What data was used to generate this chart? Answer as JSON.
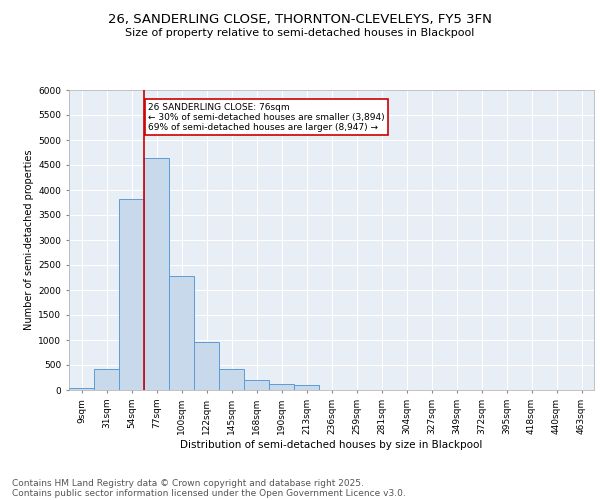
{
  "title1": "26, SANDERLING CLOSE, THORNTON-CLEVELEYS, FY5 3FN",
  "title2": "Size of property relative to semi-detached houses in Blackpool",
  "xlabel": "Distribution of semi-detached houses by size in Blackpool",
  "ylabel": "Number of semi-detached properties",
  "categories": [
    "9sqm",
    "31sqm",
    "54sqm",
    "77sqm",
    "100sqm",
    "122sqm",
    "145sqm",
    "168sqm",
    "190sqm",
    "213sqm",
    "236sqm",
    "259sqm",
    "281sqm",
    "304sqm",
    "327sqm",
    "349sqm",
    "372sqm",
    "395sqm",
    "418sqm",
    "440sqm",
    "463sqm"
  ],
  "values": [
    50,
    430,
    3820,
    4640,
    2280,
    970,
    430,
    200,
    120,
    110,
    0,
    0,
    0,
    0,
    0,
    0,
    0,
    0,
    0,
    0,
    0
  ],
  "bar_color": "#c9d9ec",
  "bar_edge_color": "#5b9bd5",
  "subject_line_bin": 3,
  "subject_label": "26 SANDERLING CLOSE: 76sqm",
  "pct_smaller": 30,
  "n_smaller": 3894,
  "pct_larger": 69,
  "n_larger": 8947,
  "ylim": [
    0,
    6000
  ],
  "yticks": [
    0,
    500,
    1000,
    1500,
    2000,
    2500,
    3000,
    3500,
    4000,
    4500,
    5000,
    5500,
    6000
  ],
  "bg_color": "#e8eef5",
  "footer1": "Contains HM Land Registry data © Crown copyright and database right 2025.",
  "footer2": "Contains public sector information licensed under the Open Government Licence v3.0.",
  "title_fontsize": 9.5,
  "subtitle_fontsize": 8,
  "axis_fontsize": 7,
  "tick_fontsize": 6.5,
  "footer_fontsize": 6.5
}
